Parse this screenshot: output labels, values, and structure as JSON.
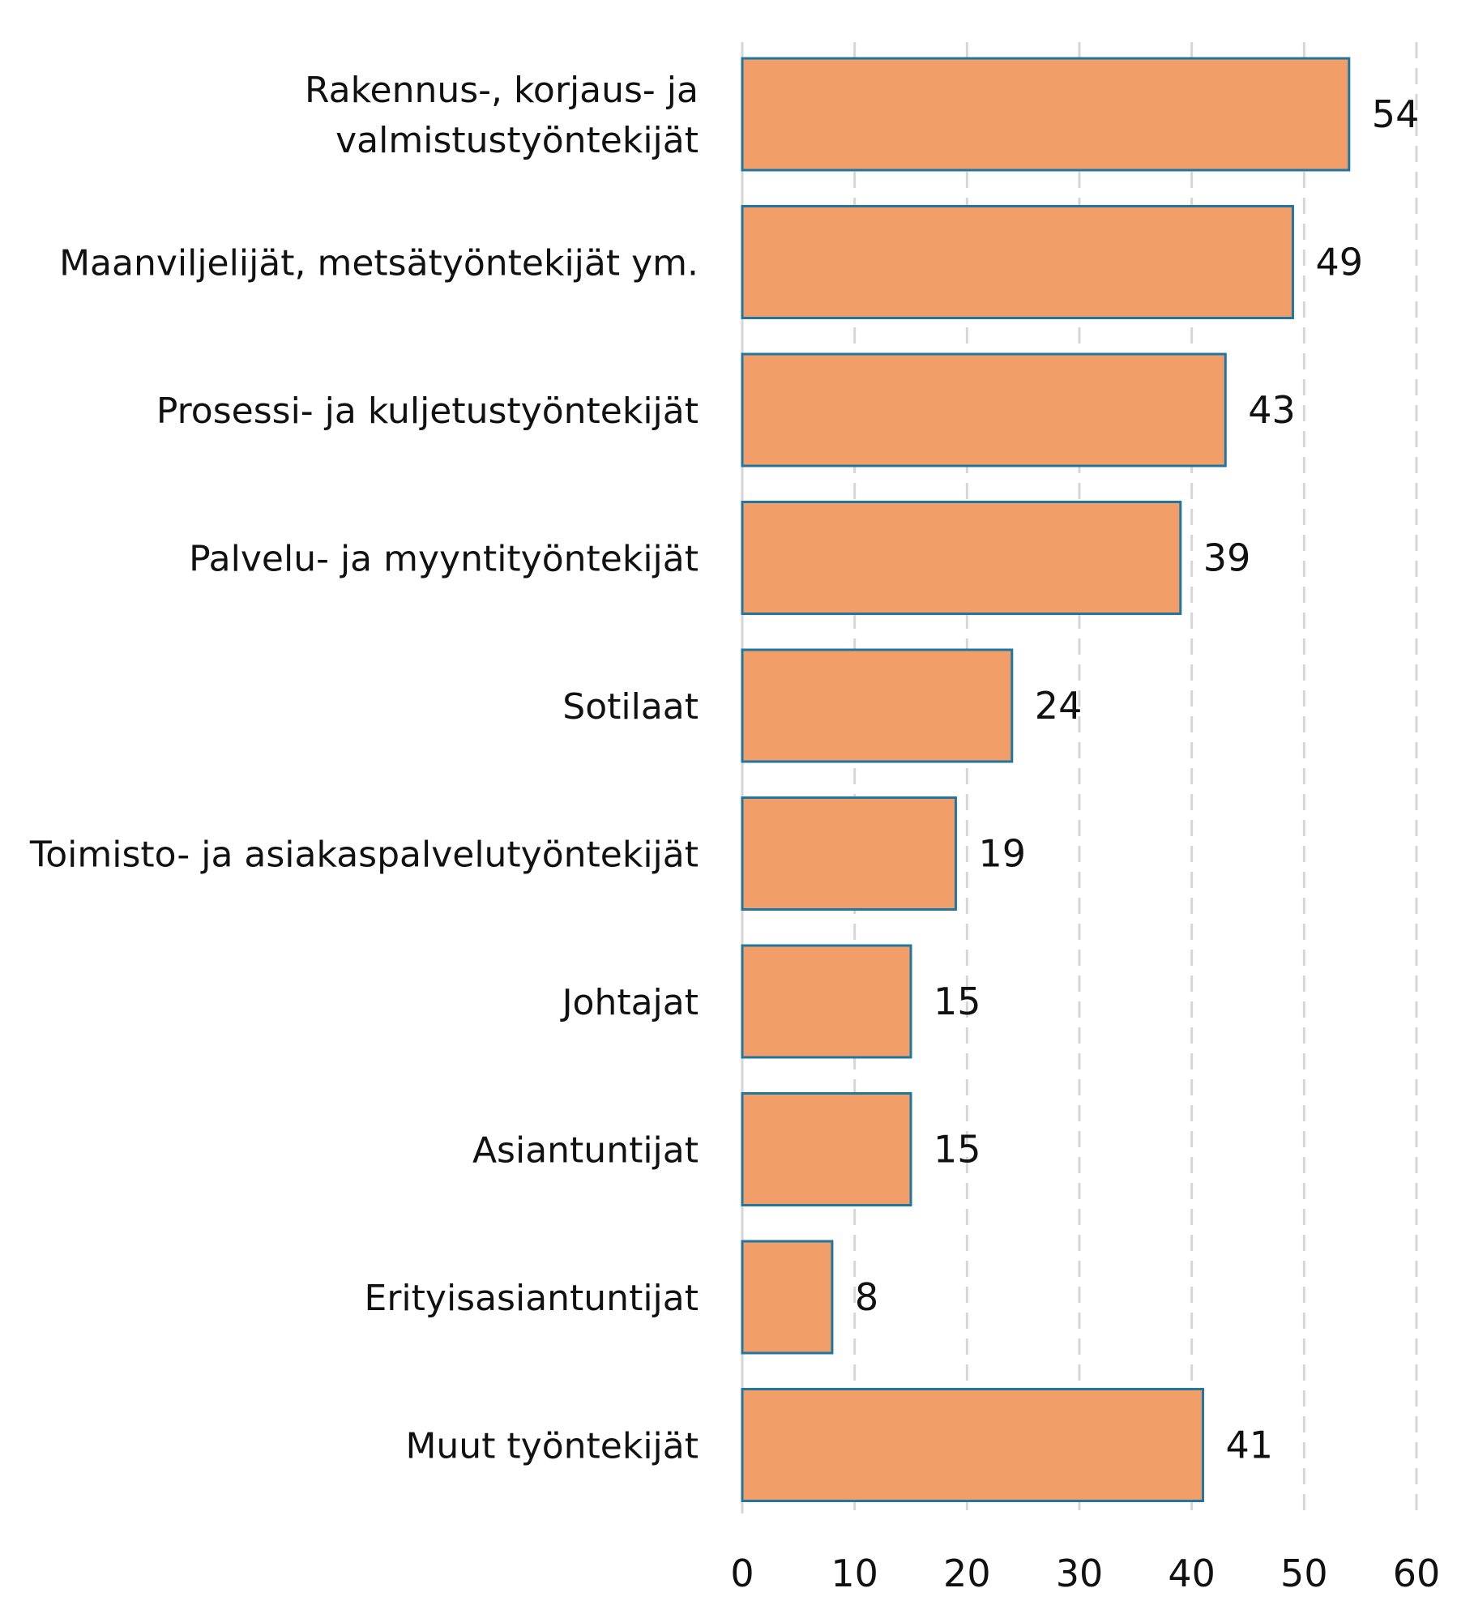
{
  "chart_data": {
    "type": "bar",
    "orientation": "horizontal",
    "categories": [
      [
        "Rakennus-, korjaus- ja",
        "valmistustyöntekijät"
      ],
      [
        "Maanviljelijät, metsätyöntekijät ym."
      ],
      [
        "Prosessi- ja kuljetustyöntekijät"
      ],
      [
        "Palvelu- ja myyntityöntekijät"
      ],
      [
        "Sotilaat"
      ],
      [
        "Toimisto- ja asiakaspalvelutyöntekijät"
      ],
      [
        "Johtajat"
      ],
      [
        "Asiantuntijat"
      ],
      [
        "Erityisasiantuntijat"
      ],
      [
        "Muut työntekijät"
      ]
    ],
    "values": [
      54,
      49,
      43,
      39,
      24,
      19,
      15,
      15,
      8,
      41
    ],
    "xlim": [
      0,
      60
    ],
    "xticks": [
      0,
      10,
      20,
      30,
      40,
      50,
      60
    ],
    "grid": "vertical-dashed",
    "legend": "none",
    "colors": {
      "bar_fill": "#f29e69",
      "bar_stroke": "#2176a0",
      "grid": "#d6d6d6",
      "text": "#111111"
    }
  }
}
